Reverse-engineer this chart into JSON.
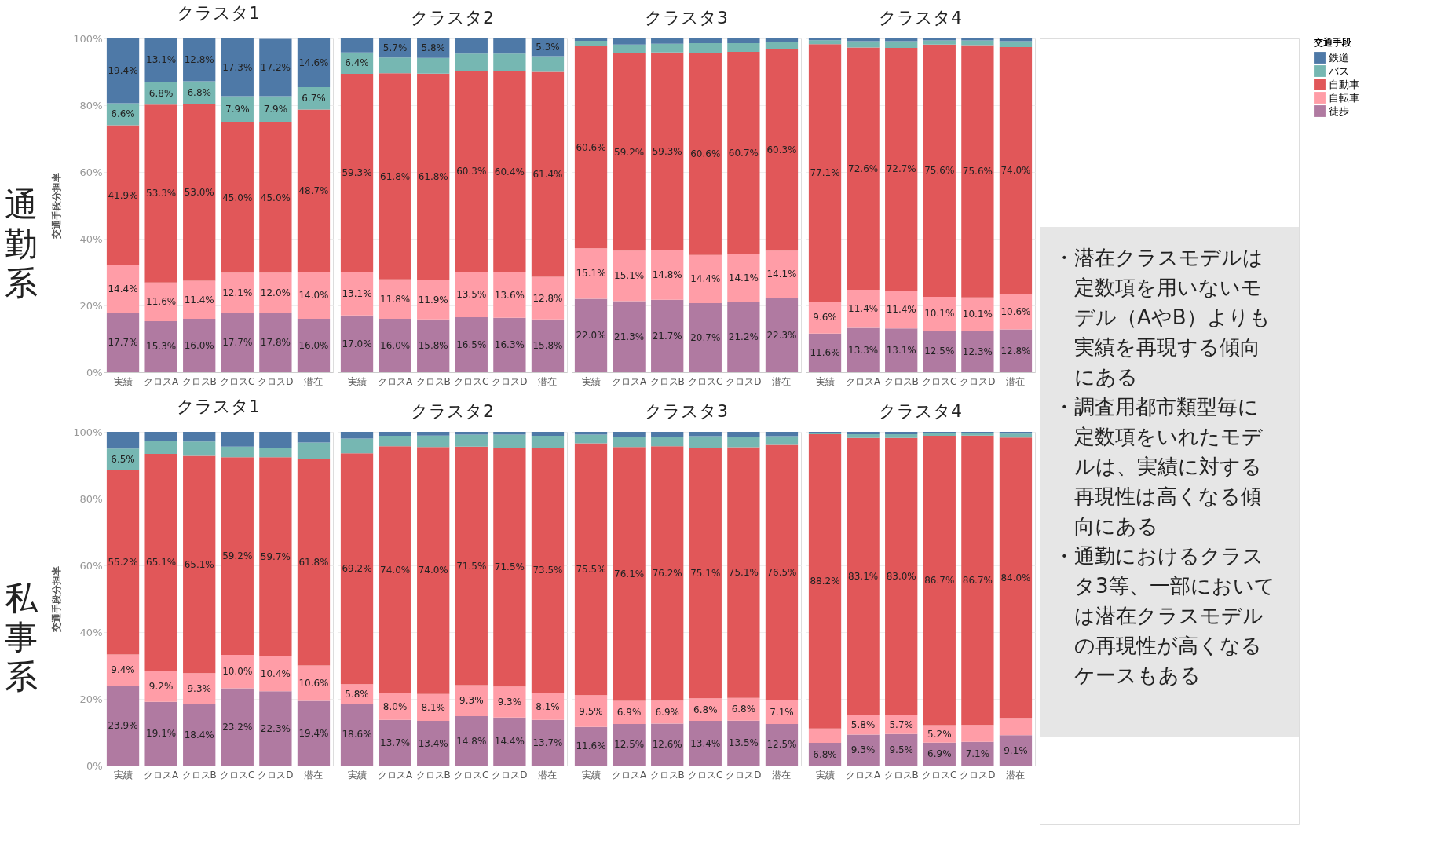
{
  "chart_data": [
    {
      "type": "bar",
      "title": "クラスタ1",
      "stacked": true,
      "ylabel": "交通手段分担率",
      "ylim": [
        0,
        100
      ],
      "yticks": [
        {
          "value": 0,
          "label": "0%"
        },
        {
          "value": 20,
          "label": "20%"
        },
        {
          "value": 40,
          "label": "40%"
        },
        {
          "value": 60,
          "label": "60%"
        },
        {
          "value": 80,
          "label": "80%"
        },
        {
          "value": 100,
          "label": "100%"
        }
      ],
      "grid": "y",
      "legend": "right",
      "legend_title": "交通手段",
      "annotations": [
        "通勤系"
      ],
      "categories": [
        "実績",
        "クロスA",
        "クロスB",
        "クロスC",
        "クロスD",
        "潜在"
      ],
      "series": [
        {
          "name": "徒歩",
          "color": "#b07aa1",
          "values": [
            17.7,
            15.3,
            16.0,
            17.7,
            17.8,
            16.0
          ],
          "value_labels": [
            "17.7%",
            "15.3%",
            "16.0%",
            "17.7%",
            "17.8%",
            "16.0%"
          ]
        },
        {
          "name": "自転車",
          "color": "#ff9da7",
          "values": [
            14.4,
            11.6,
            11.4,
            12.1,
            12.0,
            14.0
          ],
          "value_labels": [
            "14.4%",
            "11.6%",
            "11.4%",
            "12.1%",
            "12.0%",
            "14.0%"
          ]
        },
        {
          "name": "自動車",
          "color": "#e15759",
          "values": [
            41.9,
            53.3,
            53.0,
            45.0,
            45.0,
            48.7
          ],
          "value_labels": [
            "41.9%",
            "53.3%",
            "53.0%",
            "45.0%",
            "45.0%",
            "48.7%"
          ]
        },
        {
          "name": "バス",
          "color": "#76b7b2",
          "values": [
            6.6,
            6.8,
            6.8,
            7.9,
            7.9,
            6.7
          ],
          "value_labels": [
            "6.6%",
            "6.8%",
            "6.8%",
            "7.9%",
            "7.9%",
            "6.7%"
          ]
        },
        {
          "name": "鉄道",
          "color": "#4e79a7",
          "values": [
            19.4,
            13.1,
            12.8,
            17.3,
            17.2,
            14.6
          ],
          "value_labels": [
            "19.4%",
            "13.1%",
            "12.8%",
            "17.3%",
            "17.2%",
            "14.6%"
          ]
        }
      ]
    },
    {
      "type": "bar",
      "title": "クラスタ2",
      "stacked": true,
      "ylim": [
        0,
        100
      ],
      "yticks": [
        {
          "value": 0,
          "label": "0%"
        },
        {
          "value": 20,
          "label": "20%"
        },
        {
          "value": 40,
          "label": "40%"
        },
        {
          "value": 60,
          "label": "60%"
        },
        {
          "value": 80,
          "label": "80%"
        },
        {
          "value": 100,
          "label": "100%"
        }
      ],
      "tick_labels": "x",
      "grid": "y",
      "categories": [
        "実績",
        "クロスA",
        "クロスB",
        "クロスC",
        "クロスD",
        "潜在"
      ],
      "series": [
        {
          "color": "#b07aa1",
          "values": [
            17.0,
            16.0,
            15.8,
            16.5,
            16.3,
            15.8
          ],
          "value_labels": [
            "17.0%",
            "16.0%",
            "15.8%",
            "16.5%",
            "16.3%",
            "15.8%"
          ]
        },
        {
          "color": "#ff9da7",
          "values": [
            13.1,
            11.8,
            11.9,
            13.5,
            13.6,
            12.8
          ],
          "value_labels": [
            "13.1%",
            "11.8%",
            "11.9%",
            "13.5%",
            "13.6%",
            "12.8%"
          ]
        },
        {
          "color": "#e15759",
          "values": [
            59.3,
            61.8,
            61.8,
            60.3,
            60.4,
            61.4
          ],
          "value_labels": [
            "59.3%",
            "61.8%",
            "61.8%",
            "60.3%",
            "60.4%",
            "61.4%"
          ]
        },
        {
          "color": "#76b7b2",
          "values": [
            6.4,
            4.7,
            4.7,
            5.2,
            5.2,
            4.7
          ],
          "value_labels": [
            "6.4%",
            null,
            null,
            null,
            null,
            null
          ]
        },
        {
          "color": "#4e79a7",
          "values": [
            4.2,
            5.7,
            5.8,
            4.5,
            4.5,
            5.3
          ],
          "value_labels": [
            null,
            "5.7%",
            "5.8%",
            null,
            null,
            "5.3%"
          ]
        }
      ]
    },
    {
      "type": "bar",
      "title": "クラスタ3",
      "stacked": true,
      "ylim": [
        0,
        100
      ],
      "yticks": [
        {
          "value": 0,
          "label": "0%"
        },
        {
          "value": 20,
          "label": "20%"
        },
        {
          "value": 40,
          "label": "40%"
        },
        {
          "value": 60,
          "label": "60%"
        },
        {
          "value": 80,
          "label": "80%"
        },
        {
          "value": 100,
          "label": "100%"
        }
      ],
      "tick_labels": "x",
      "grid": "y",
      "categories": [
        "実績",
        "クロスA",
        "クロスB",
        "クロスC",
        "クロスD",
        "潜在"
      ],
      "series": [
        {
          "color": "#b07aa1",
          "values": [
            22.0,
            21.3,
            21.7,
            20.7,
            21.2,
            22.3
          ],
          "value_labels": [
            "22.0%",
            "21.3%",
            "21.7%",
            "20.7%",
            "21.2%",
            "22.3%"
          ]
        },
        {
          "color": "#ff9da7",
          "values": [
            15.1,
            15.1,
            14.8,
            14.4,
            14.1,
            14.1
          ],
          "value_labels": [
            "15.1%",
            "15.1%",
            "14.8%",
            "14.4%",
            "14.1%",
            "14.1%"
          ]
        },
        {
          "color": "#e15759",
          "values": [
            60.6,
            59.2,
            59.3,
            60.6,
            60.7,
            60.3
          ],
          "value_labels": [
            "60.6%",
            "59.2%",
            "59.3%",
            "60.6%",
            "60.7%",
            "60.3%"
          ]
        },
        {
          "color": "#76b7b2",
          "values": [
            1.6,
            2.6,
            2.6,
            2.9,
            2.6,
            2.1
          ]
        },
        {
          "color": "#4e79a7",
          "values": [
            0.7,
            1.8,
            1.6,
            1.4,
            1.4,
            1.2
          ]
        }
      ]
    },
    {
      "type": "bar",
      "title": "クラスタ4",
      "stacked": true,
      "ylim": [
        0,
        100
      ],
      "yticks": [
        {
          "value": 0,
          "label": "0%"
        },
        {
          "value": 20,
          "label": "20%"
        },
        {
          "value": 40,
          "label": "40%"
        },
        {
          "value": 60,
          "label": "60%"
        },
        {
          "value": 80,
          "label": "80%"
        },
        {
          "value": 100,
          "label": "100%"
        }
      ],
      "tick_labels": "x",
      "grid": "y",
      "categories": [
        "実績",
        "クロスA",
        "クロスB",
        "クロスC",
        "クロスD",
        "潜在"
      ],
      "series": [
        {
          "color": "#b07aa1",
          "values": [
            11.6,
            13.3,
            13.1,
            12.5,
            12.3,
            12.8
          ],
          "value_labels": [
            "11.6%",
            "13.3%",
            "13.1%",
            "12.5%",
            "12.3%",
            "12.8%"
          ]
        },
        {
          "color": "#ff9da7",
          "values": [
            9.6,
            11.4,
            11.4,
            10.1,
            10.1,
            10.6
          ],
          "value_labels": [
            "9.6%",
            "11.4%",
            "11.4%",
            "10.1%",
            "10.1%",
            "10.6%"
          ]
        },
        {
          "color": "#e15759",
          "values": [
            77.1,
            72.6,
            72.7,
            75.6,
            75.6,
            74.0
          ],
          "value_labels": [
            "77.1%",
            "72.6%",
            "72.7%",
            "75.6%",
            "75.6%",
            "74.0%"
          ]
        },
        {
          "color": "#76b7b2",
          "values": [
            1.2,
            1.9,
            2.0,
            1.2,
            1.4,
            1.8
          ]
        },
        {
          "color": "#4e79a7",
          "values": [
            0.5,
            0.8,
            0.8,
            0.6,
            0.6,
            0.8
          ]
        }
      ]
    },
    {
      "type": "bar",
      "title": "クラスタ1",
      "stacked": true,
      "ylabel": "交通手段分担率",
      "ylim": [
        0,
        100
      ],
      "yticks": [
        {
          "value": 0,
          "label": "0%"
        },
        {
          "value": 20,
          "label": "20%"
        },
        {
          "value": 40,
          "label": "40%"
        },
        {
          "value": 60,
          "label": "60%"
        },
        {
          "value": 80,
          "label": "80%"
        },
        {
          "value": 100,
          "label": "100%"
        }
      ],
      "grid": "y",
      "annotations": [
        "私事系"
      ],
      "categories": [
        "実績",
        "クロスA",
        "クロスB",
        "クロスC",
        "クロスD",
        "潜在"
      ],
      "series": [
        {
          "color": "#b07aa1",
          "values": [
            23.9,
            19.1,
            18.4,
            23.2,
            22.3,
            19.4
          ],
          "value_labels": [
            "23.9%",
            "19.1%",
            "18.4%",
            "23.2%",
            "22.3%",
            "19.4%"
          ]
        },
        {
          "color": "#ff9da7",
          "values": [
            9.4,
            9.2,
            9.3,
            10.0,
            10.4,
            10.6
          ],
          "value_labels": [
            "9.4%",
            "9.2%",
            "9.3%",
            "10.0%",
            "10.4%",
            "10.6%"
          ]
        },
        {
          "color": "#e15759",
          "values": [
            55.2,
            65.1,
            65.1,
            59.2,
            59.7,
            61.8
          ],
          "value_labels": [
            "55.2%",
            "65.1%",
            "65.1%",
            "59.2%",
            "59.7%",
            "61.8%"
          ]
        },
        {
          "color": "#76b7b2",
          "values": [
            6.5,
            4.0,
            4.3,
            3.2,
            2.9,
            5.0
          ],
          "value_labels": [
            "6.5%",
            null,
            null,
            null,
            null,
            null
          ]
        },
        {
          "color": "#4e79a7",
          "values": [
            5.0,
            2.6,
            2.9,
            4.4,
            4.7,
            3.2
          ]
        }
      ]
    },
    {
      "type": "bar",
      "title": "クラスタ2",
      "stacked": true,
      "ylim": [
        0,
        100
      ],
      "yticks": [
        {
          "value": 0,
          "label": "0%"
        },
        {
          "value": 20,
          "label": "20%"
        },
        {
          "value": 40,
          "label": "40%"
        },
        {
          "value": 60,
          "label": "60%"
        },
        {
          "value": 80,
          "label": "80%"
        },
        {
          "value": 100,
          "label": "100%"
        }
      ],
      "tick_labels": "x",
      "grid": "y",
      "categories": [
        "実績",
        "クロスA",
        "クロスB",
        "クロスC",
        "クロスD",
        "潜在"
      ],
      "series": [
        {
          "color": "#b07aa1",
          "values": [
            18.6,
            13.7,
            13.4,
            14.8,
            14.4,
            13.7
          ],
          "value_labels": [
            "18.6%",
            "13.7%",
            "13.4%",
            "14.8%",
            "14.4%",
            "13.7%"
          ]
        },
        {
          "color": "#ff9da7",
          "values": [
            5.8,
            8.0,
            8.1,
            9.3,
            9.3,
            8.1
          ],
          "value_labels": [
            "5.8%",
            "8.0%",
            "8.1%",
            "9.3%",
            "9.3%",
            "8.1%"
          ]
        },
        {
          "color": "#e15759",
          "values": [
            69.2,
            74.0,
            74.0,
            71.5,
            71.5,
            73.5
          ],
          "value_labels": [
            "69.2%",
            "74.0%",
            "74.0%",
            "71.5%",
            "71.5%",
            "73.5%"
          ]
        },
        {
          "color": "#76b7b2",
          "values": [
            4.4,
            3.1,
            3.4,
            3.6,
            4.0,
            3.5
          ]
        },
        {
          "color": "#4e79a7",
          "values": [
            2.0,
            1.2,
            1.1,
            0.8,
            0.8,
            1.2
          ]
        }
      ]
    },
    {
      "type": "bar",
      "title": "クラスタ3",
      "stacked": true,
      "ylim": [
        0,
        100
      ],
      "yticks": [
        {
          "value": 0,
          "label": "0%"
        },
        {
          "value": 20,
          "label": "20%"
        },
        {
          "value": 40,
          "label": "40%"
        },
        {
          "value": 60,
          "label": "60%"
        },
        {
          "value": 80,
          "label": "80%"
        },
        {
          "value": 100,
          "label": "100%"
        }
      ],
      "tick_labels": "x",
      "grid": "y",
      "categories": [
        "実績",
        "クロスA",
        "クロスB",
        "クロスC",
        "クロスD",
        "潜在"
      ],
      "series": [
        {
          "color": "#b07aa1",
          "values": [
            11.6,
            12.5,
            12.6,
            13.4,
            13.5,
            12.5
          ],
          "value_labels": [
            "11.6%",
            "12.5%",
            "12.6%",
            "13.4%",
            "13.5%",
            "12.5%"
          ]
        },
        {
          "color": "#ff9da7",
          "values": [
            9.5,
            6.9,
            6.9,
            6.8,
            6.8,
            7.1
          ],
          "value_labels": [
            "9.5%",
            "6.9%",
            "6.9%",
            "6.8%",
            "6.8%",
            "7.1%"
          ]
        },
        {
          "color": "#e15759",
          "values": [
            75.5,
            76.1,
            76.2,
            75.1,
            75.1,
            76.5
          ],
          "value_labels": [
            "75.5%",
            "76.1%",
            "76.2%",
            "75.1%",
            "75.1%",
            "76.5%"
          ]
        },
        {
          "color": "#76b7b2",
          "values": [
            2.6,
            3.1,
            2.9,
            3.4,
            3.2,
            2.6
          ]
        },
        {
          "color": "#4e79a7",
          "values": [
            0.8,
            1.4,
            1.4,
            1.3,
            1.4,
            1.3
          ]
        }
      ]
    },
    {
      "type": "bar",
      "title": "クラスタ4",
      "stacked": true,
      "ylim": [
        0,
        100
      ],
      "yticks": [
        {
          "value": 0,
          "label": "0%"
        },
        {
          "value": 20,
          "label": "20%"
        },
        {
          "value": 40,
          "label": "40%"
        },
        {
          "value": 60,
          "label": "60%"
        },
        {
          "value": 80,
          "label": "80%"
        },
        {
          "value": 100,
          "label": "100%"
        }
      ],
      "tick_labels": "x",
      "grid": "y",
      "categories": [
        "実績",
        "クロスA",
        "クロスB",
        "クロスC",
        "クロスD",
        "潜在"
      ],
      "series": [
        {
          "color": "#b07aa1",
          "values": [
            6.8,
            9.3,
            9.5,
            6.9,
            7.1,
            9.1
          ],
          "value_labels": [
            "6.8%",
            "9.3%",
            "9.5%",
            "6.9%",
            "7.1%",
            "9.1%"
          ]
        },
        {
          "color": "#ff9da7",
          "values": [
            4.3,
            5.8,
            5.7,
            5.2,
            5.1,
            5.2
          ],
          "value_labels": [
            null,
            "5.8%",
            "5.7%",
            "5.2%",
            null,
            null
          ]
        },
        {
          "color": "#e15759",
          "values": [
            88.2,
            83.1,
            83.0,
            86.7,
            86.7,
            84.0
          ],
          "value_labels": [
            "88.2%",
            "83.1%",
            "83.0%",
            "86.7%",
            "86.7%",
            "84.0%"
          ]
        },
        {
          "color": "#76b7b2",
          "values": [
            0.4,
            1.1,
            1.1,
            0.8,
            0.7,
            1.2
          ]
        },
        {
          "color": "#4e79a7",
          "values": [
            0.3,
            0.7,
            0.7,
            0.4,
            0.4,
            0.5
          ]
        }
      ]
    },
    {
      "type": "other",
      "annotations": [
        "・潜在クラスモデルは定数項を用いないモデル（AやB）よりも実績を再現する傾向にある",
        "・調査用都市類型毎に定数項をいれたモデルは、実績に対する再現性は高くなる傾向にある",
        "・通勤におけるクラスタ3等、一部においては潜在クラスモデルの再現性が高くなるケースもある"
      ]
    }
  ]
}
